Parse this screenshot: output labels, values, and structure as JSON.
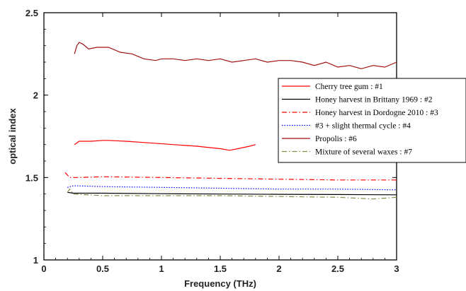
{
  "chart_data": {
    "type": "line",
    "title": "",
    "xlabel": "Frequency (THz)",
    "ylabel": "optical index",
    "xlim": [
      0,
      3
    ],
    "ylim": [
      1,
      2.5
    ],
    "x_ticks": [
      "0",
      "0.5",
      "1",
      "1.5",
      "2",
      "2.5",
      "3"
    ],
    "y_ticks": [
      "1",
      "1.5",
      "2",
      "2.5"
    ],
    "grid": false,
    "legend_position": "right",
    "series": [
      {
        "name": "Cherry tree gum : #1",
        "color": "#ff0000",
        "style": "solid",
        "x": [
          0.26,
          0.3,
          0.4,
          0.5,
          0.55,
          0.7,
          0.9,
          1.1,
          1.3,
          1.5,
          1.58,
          1.65,
          1.75,
          1.8
        ],
        "y": [
          1.7,
          1.72,
          1.72,
          1.725,
          1.725,
          1.72,
          1.71,
          1.7,
          1.69,
          1.675,
          1.665,
          1.675,
          1.69,
          1.7
        ]
      },
      {
        "name": "Honey harvest  in Brittany 1969 : #2",
        "color": "#000000",
        "style": "solid",
        "x": [
          0.2,
          0.25,
          0.5,
          1.0,
          1.5,
          2.0,
          2.5,
          3.0
        ],
        "y": [
          1.41,
          1.405,
          1.405,
          1.402,
          1.4,
          1.398,
          1.397,
          1.395
        ]
      },
      {
        "name": "Honey harvest in Dordogne 2010 : #3",
        "color": "#ff0000",
        "style": "dashdot",
        "x": [
          0.18,
          0.22,
          0.3,
          0.5,
          1.0,
          1.5,
          2.0,
          2.5,
          3.0
        ],
        "y": [
          1.53,
          1.5,
          1.5,
          1.505,
          1.5,
          1.495,
          1.49,
          1.485,
          1.485
        ]
      },
      {
        "name": "#3 + slight thermal cycle : #4",
        "color": "#0000ff",
        "style": "dotted",
        "x": [
          0.2,
          0.25,
          0.5,
          1.0,
          1.5,
          2.0,
          2.5,
          3.0
        ],
        "y": [
          1.44,
          1.45,
          1.445,
          1.44,
          1.435,
          1.43,
          1.43,
          1.425
        ]
      },
      {
        "name": "Propolis : #6",
        "color": "#a01010",
        "style": "solid",
        "x": [
          0.26,
          0.28,
          0.3,
          0.33,
          0.38,
          0.45,
          0.55,
          0.65,
          0.75,
          0.85,
          0.95,
          1.0,
          1.1,
          1.2,
          1.3,
          1.4,
          1.5,
          1.6,
          1.7,
          1.8,
          1.9,
          2.0,
          2.1,
          2.2,
          2.3,
          2.4,
          2.5,
          2.6,
          2.7,
          2.8,
          2.9,
          3.0
        ],
        "y": [
          2.25,
          2.3,
          2.32,
          2.31,
          2.28,
          2.29,
          2.29,
          2.26,
          2.25,
          2.22,
          2.21,
          2.22,
          2.22,
          2.21,
          2.22,
          2.21,
          2.22,
          2.2,
          2.21,
          2.22,
          2.2,
          2.21,
          2.21,
          2.2,
          2.18,
          2.2,
          2.17,
          2.18,
          2.16,
          2.18,
          2.17,
          2.2
        ]
      },
      {
        "name": "Mixture of several waxes : #7",
        "color": "#8a8a4a",
        "style": "dashdot",
        "x": [
          0.2,
          0.22,
          0.25,
          0.5,
          1.0,
          1.5,
          2.0,
          2.5,
          2.8,
          3.0
        ],
        "y": [
          1.41,
          1.43,
          1.4,
          1.39,
          1.39,
          1.39,
          1.385,
          1.38,
          1.37,
          1.38
        ]
      }
    ]
  }
}
